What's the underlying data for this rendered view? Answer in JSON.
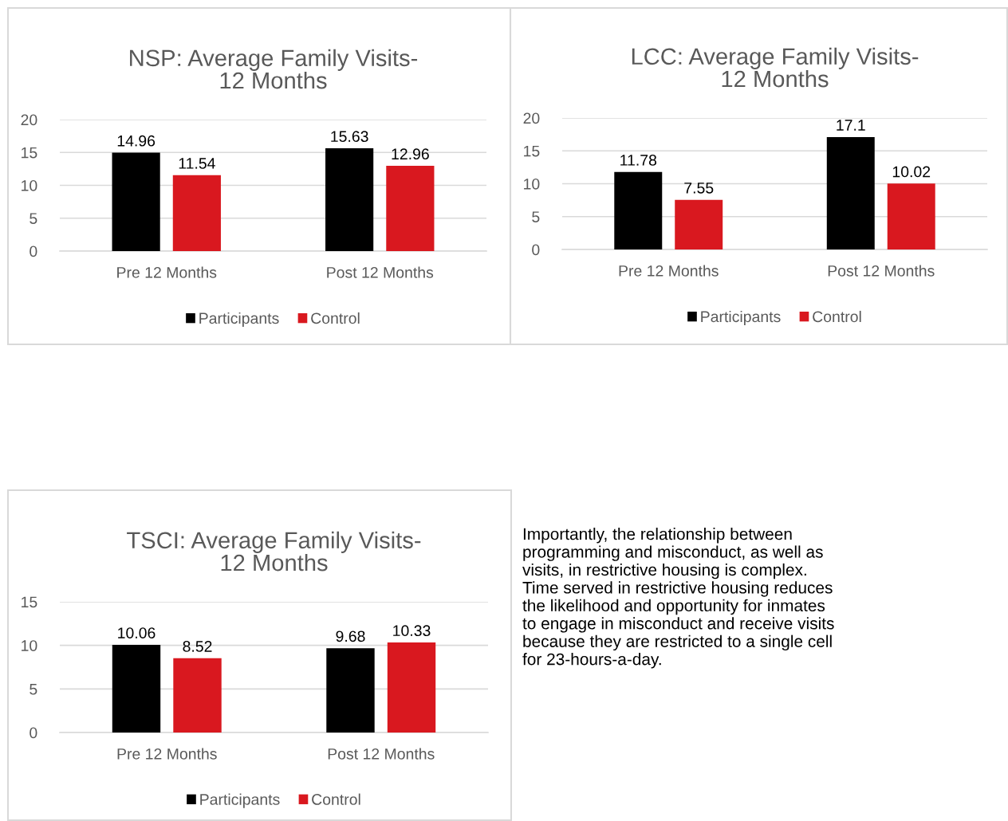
{
  "chart_data": [
    {
      "type": "bar",
      "title": "NSP: Average Family Visits-\n12 Months",
      "categories": [
        "Pre 12 Months",
        "Post 12 Months"
      ],
      "series": [
        {
          "name": "Participants",
          "color": "#000000",
          "values": [
            14.96,
            15.63
          ]
        },
        {
          "name": "Control",
          "color": "#d9181f",
          "values": [
            11.54,
            12.96
          ]
        }
      ],
      "ylim": [
        0,
        20
      ],
      "yticks": [
        0,
        5,
        10,
        15,
        20
      ],
      "grid": "y",
      "legend": "bottom",
      "data_labels": true
    },
    {
      "type": "bar",
      "title": "LCC: Average Family Visits-\n12 Months",
      "categories": [
        "Pre 12 Months",
        "Post 12 Months"
      ],
      "series": [
        {
          "name": "Participants",
          "color": "#000000",
          "values": [
            11.78,
            17.1
          ]
        },
        {
          "name": "Control",
          "color": "#d9181f",
          "values": [
            7.55,
            10.02
          ]
        }
      ],
      "ylim": [
        0,
        20
      ],
      "yticks": [
        0,
        5,
        10,
        15,
        20
      ],
      "grid": "y",
      "legend": "bottom",
      "data_labels": true
    },
    {
      "type": "bar",
      "title": "TSCI: Average Family Visits-\n12 Months",
      "categories": [
        "Pre 12 Months",
        "Post 12 Months"
      ],
      "series": [
        {
          "name": "Participants",
          "color": "#000000",
          "values": [
            10.06,
            9.68
          ]
        },
        {
          "name": "Control",
          "color": "#d9181f",
          "values": [
            8.52,
            10.33
          ]
        }
      ],
      "ylim": [
        0,
        15
      ],
      "yticks": [
        0,
        5,
        10,
        15
      ],
      "grid": "y",
      "legend": "bottom",
      "data_labels": true
    },
    {
      "type": "other",
      "annotations": [
        "Importantly, the relationship between\nprogramming and misconduct, as well as\nvisits, in restrictive housing is complex.\nTime served in restrictive housing reduces\nthe likelihood and opportunity for inmates\nto engage in misconduct and receive visits\nbecause they are restricted to a single cell\nfor 23-hours-a-day."
      ]
    }
  ]
}
